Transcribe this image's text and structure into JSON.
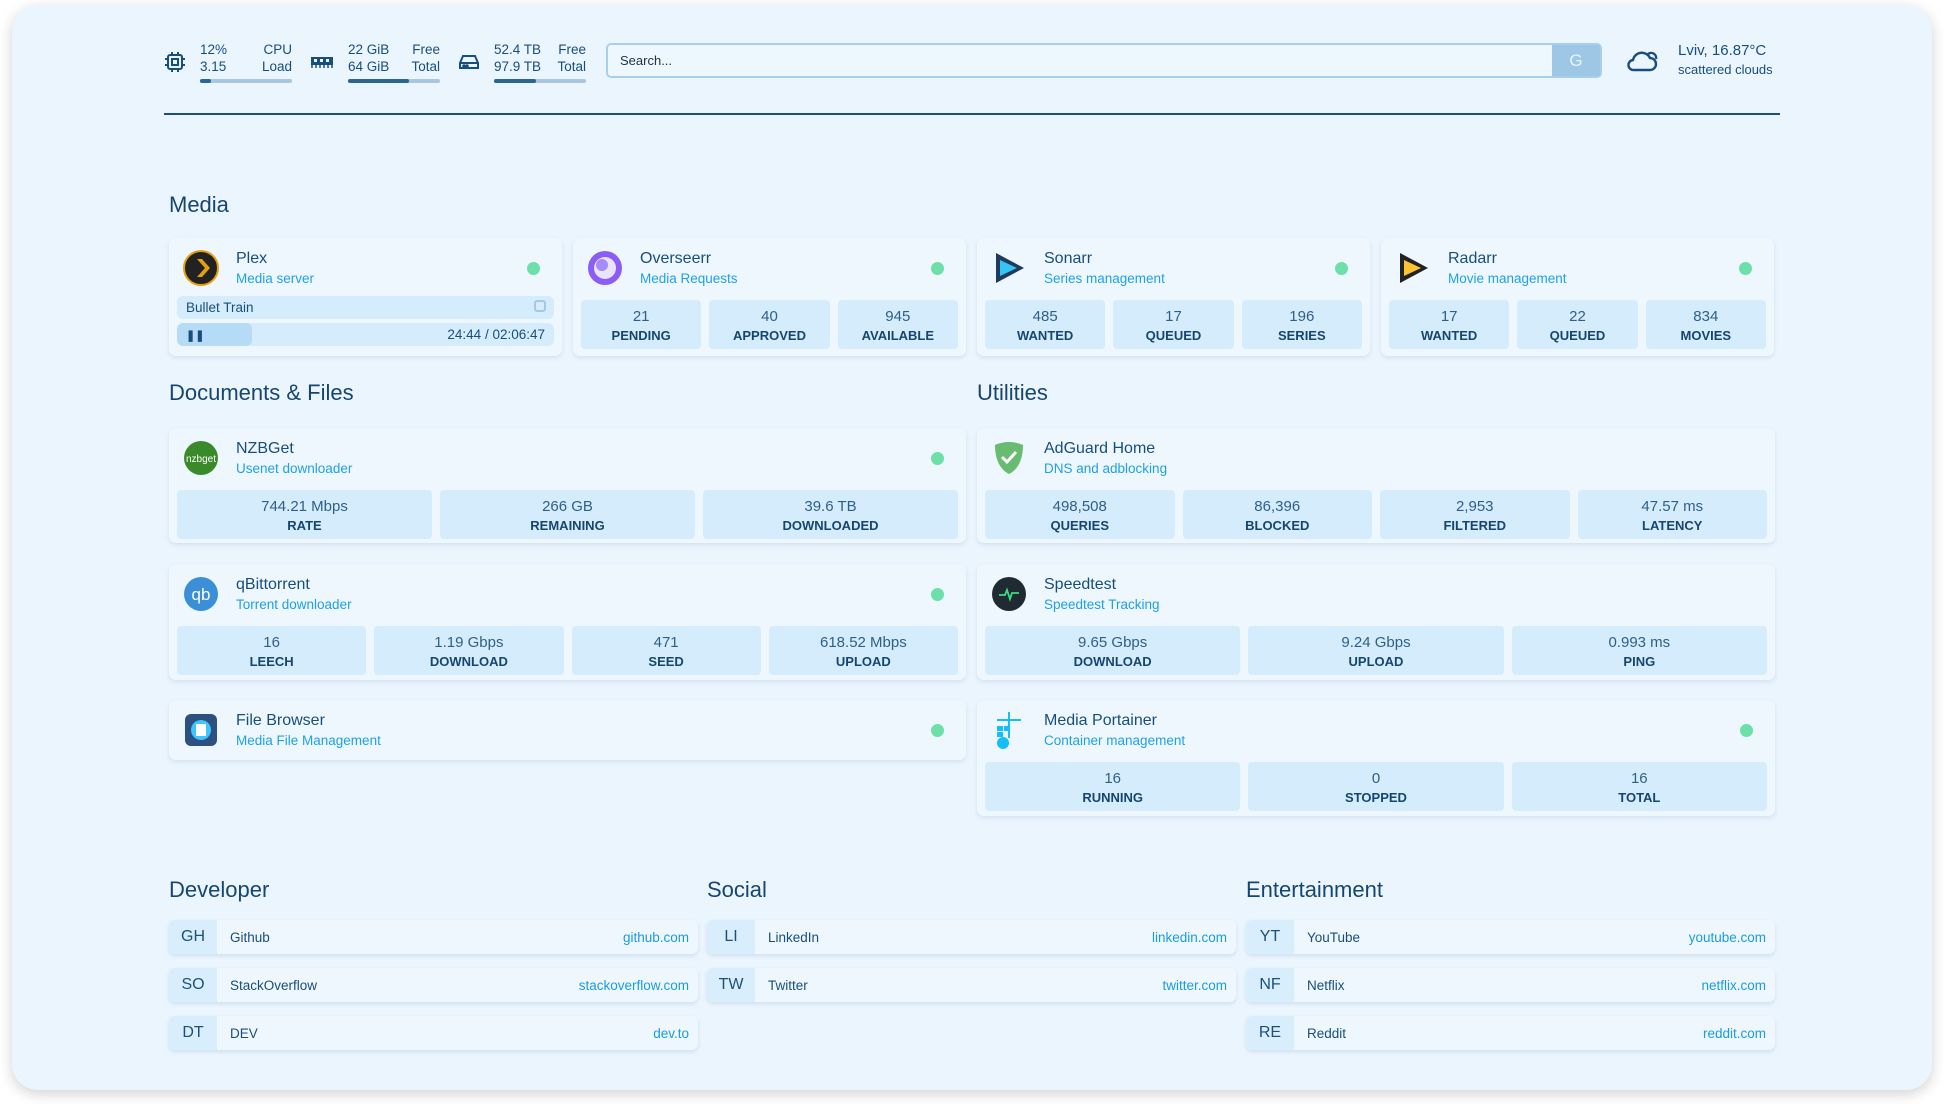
{
  "header": {
    "cpu": {
      "value": "12%",
      "label": "CPU",
      "load": "3.15",
      "load_label": "Load",
      "percent": 12
    },
    "memory": {
      "free": "22 GiB",
      "free_label": "Free",
      "total": "64 GiB",
      "total_label": "Total",
      "percent": 66
    },
    "disk": {
      "free": "52.4 TB",
      "free_label": "Free",
      "total": "97.9 TB",
      "total_label": "Total",
      "percent": 46
    },
    "search": {
      "placeholder": "Search...",
      "button": "G"
    },
    "weather": {
      "location_temp": "Lviv, 16.87°C",
      "condition": "scattered clouds"
    }
  },
  "sections": {
    "media": "Media",
    "docs": "Documents & Files",
    "utilities": "Utilities",
    "developer": "Developer",
    "social": "Social",
    "entertainment": "Entertainment"
  },
  "media": [
    {
      "name": "Plex",
      "desc": "Media server",
      "now_playing": "Bullet Train",
      "time": "24:44 / 02:06:47",
      "progress": 20
    },
    {
      "name": "Overseerr",
      "desc": "Media Requests",
      "stats": [
        {
          "v": "21",
          "l": "PENDING"
        },
        {
          "v": "40",
          "l": "APPROVED"
        },
        {
          "v": "945",
          "l": "AVAILABLE"
        }
      ]
    },
    {
      "name": "Sonarr",
      "desc": "Series management",
      "stats": [
        {
          "v": "485",
          "l": "WANTED"
        },
        {
          "v": "17",
          "l": "QUEUED"
        },
        {
          "v": "196",
          "l": "SERIES"
        }
      ]
    },
    {
      "name": "Radarr",
      "desc": "Movie management",
      "stats": [
        {
          "v": "17",
          "l": "WANTED"
        },
        {
          "v": "22",
          "l": "QUEUED"
        },
        {
          "v": "834",
          "l": "MOVIES"
        }
      ]
    }
  ],
  "docs": [
    {
      "name": "NZBGet",
      "desc": "Usenet downloader",
      "icon_text": "nzbget",
      "stats": [
        {
          "v": "744.21 Mbps",
          "l": "RATE"
        },
        {
          "v": "266 GB",
          "l": "REMAINING"
        },
        {
          "v": "39.6 TB",
          "l": "DOWNLOADED"
        }
      ]
    },
    {
      "name": "qBittorrent",
      "desc": "Torrent downloader",
      "icon_text": "qb",
      "stats": [
        {
          "v": "16",
          "l": "LEECH"
        },
        {
          "v": "1.19 Gbps",
          "l": "DOWNLOAD"
        },
        {
          "v": "471",
          "l": "SEED"
        },
        {
          "v": "618.52 Mbps",
          "l": "UPLOAD"
        }
      ]
    },
    {
      "name": "File Browser",
      "desc": "Media File Management"
    }
  ],
  "utilities": [
    {
      "name": "AdGuard Home",
      "desc": "DNS and adblocking",
      "stats": [
        {
          "v": "498,508",
          "l": "QUERIES"
        },
        {
          "v": "86,396",
          "l": "BLOCKED"
        },
        {
          "v": "2,953",
          "l": "FILTERED"
        },
        {
          "v": "47.57 ms",
          "l": "LATENCY"
        }
      ]
    },
    {
      "name": "Speedtest",
      "desc": "Speedtest Tracking",
      "stats": [
        {
          "v": "9.65 Gbps",
          "l": "DOWNLOAD"
        },
        {
          "v": "9.24 Gbps",
          "l": "UPLOAD"
        },
        {
          "v": "0.993 ms",
          "l": "PING"
        }
      ]
    },
    {
      "name": "Media Portainer",
      "desc": "Container management",
      "stats": [
        {
          "v": "16",
          "l": "RUNNING"
        },
        {
          "v": "0",
          "l": "STOPPED"
        },
        {
          "v": "16",
          "l": "TOTAL"
        }
      ]
    }
  ],
  "developer": [
    {
      "abbr": "GH",
      "name": "Github",
      "url": "github.com"
    },
    {
      "abbr": "SO",
      "name": "StackOverflow",
      "url": "stackoverflow.com"
    },
    {
      "abbr": "DT",
      "name": "DEV",
      "url": "dev.to"
    }
  ],
  "social": [
    {
      "abbr": "LI",
      "name": "LinkedIn",
      "url": "linkedin.com"
    },
    {
      "abbr": "TW",
      "name": "Twitter",
      "url": "twitter.com"
    }
  ],
  "entertainment": [
    {
      "abbr": "YT",
      "name": "YouTube",
      "url": "youtube.com"
    },
    {
      "abbr": "NF",
      "name": "Netflix",
      "url": "netflix.com"
    },
    {
      "abbr": "RE",
      "name": "Reddit",
      "url": "reddit.com"
    }
  ]
}
